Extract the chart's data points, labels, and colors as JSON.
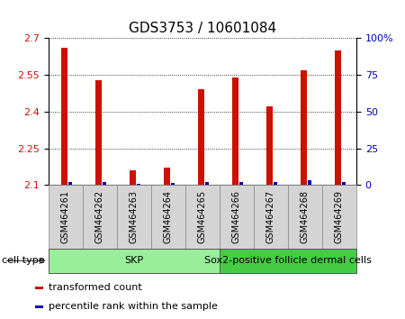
{
  "title": "GDS3753 / 10601084",
  "samples": [
    "GSM464261",
    "GSM464262",
    "GSM464263",
    "GSM464264",
    "GSM464265",
    "GSM464266",
    "GSM464267",
    "GSM464268",
    "GSM464269"
  ],
  "transformed_count": [
    2.66,
    2.53,
    2.16,
    2.17,
    2.49,
    2.54,
    2.42,
    2.57,
    2.65
  ],
  "percentile_rank": [
    2.0,
    2.0,
    1.0,
    1.5,
    2.0,
    2.0,
    2.0,
    3.0,
    2.0
  ],
  "ylim_left": [
    2.1,
    2.7
  ],
  "ylim_right": [
    0,
    100
  ],
  "yticks_left": [
    2.1,
    2.25,
    2.4,
    2.55,
    2.7
  ],
  "yticks_right": [
    0,
    25,
    50,
    75,
    100
  ],
  "ytick_labels_right": [
    "0",
    "25",
    "50",
    "75",
    "100%"
  ],
  "red_color": "#cc1100",
  "blue_color": "#0000bb",
  "groups": [
    {
      "label": "SKP",
      "samples": [
        0,
        1,
        2,
        3,
        4
      ],
      "color": "#99ee99"
    },
    {
      "label": "Sox2-positive follicle dermal cells",
      "samples": [
        5,
        6,
        7,
        8
      ],
      "color": "#44cc44"
    }
  ],
  "cell_type_label": "cell type",
  "legend_items": [
    {
      "label": "transformed count",
      "color": "#cc1100"
    },
    {
      "label": "percentile rank within the sample",
      "color": "#0000bb"
    }
  ],
  "background_color": "#ffffff",
  "gray_box_color": "#d4d4d4",
  "title_fontsize": 11,
  "tick_fontsize": 8,
  "sample_fontsize": 7
}
